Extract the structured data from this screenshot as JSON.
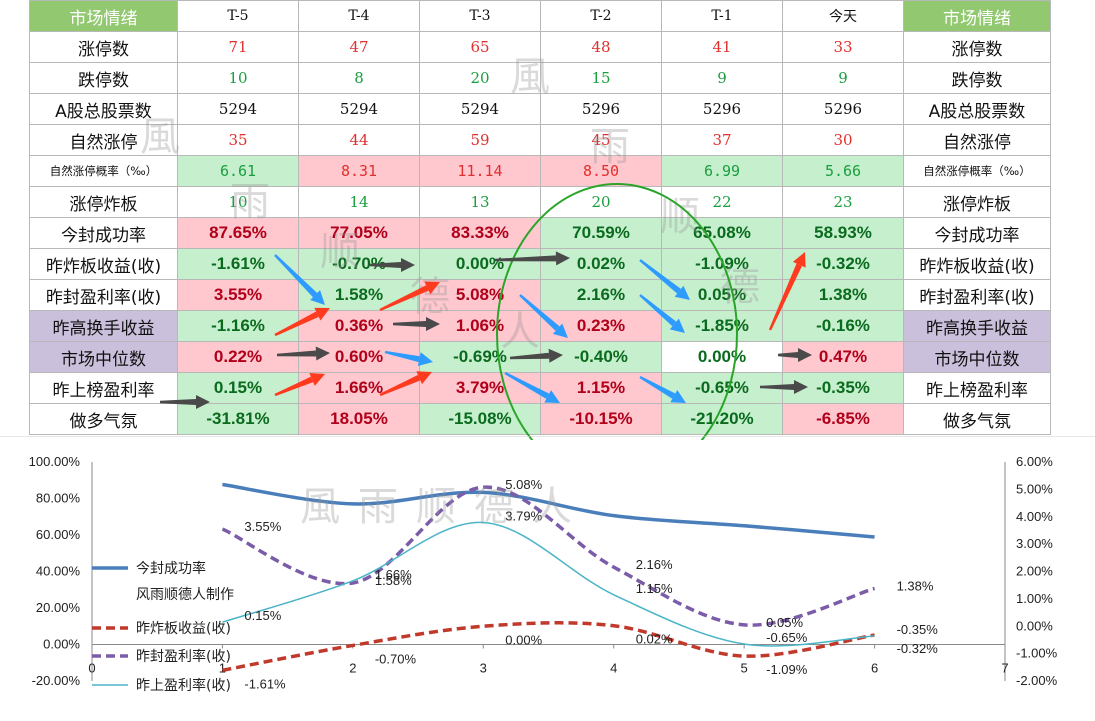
{
  "table": {
    "header": {
      "left": "市场情绪",
      "right": "市场情绪",
      "cols": [
        "T-5",
        "T-4",
        "T-3",
        "T-2",
        "T-1",
        "今天"
      ]
    },
    "rows": [
      {
        "label": "涨停数",
        "values": [
          "71",
          "47",
          "65",
          "48",
          "41",
          "33"
        ]
      },
      {
        "label": "跌停数",
        "values": [
          "10",
          "8",
          "20",
          "15",
          "9",
          "9"
        ]
      },
      {
        "label": "A股总股票数",
        "values": [
          "5294",
          "5294",
          "5294",
          "5296",
          "5296",
          "5296"
        ]
      },
      {
        "label": "自然涨停",
        "values": [
          "35",
          "44",
          "59",
          "45",
          "37",
          "30"
        ]
      },
      {
        "label": "自然涨停概率（‰）",
        "values": [
          "6.61",
          "8.31",
          "11.14",
          "8.50",
          "6.99",
          "5.66"
        ]
      },
      {
        "label": "涨停炸板",
        "values": [
          "10",
          "14",
          "13",
          "20",
          "22",
          "23"
        ]
      },
      {
        "label": "今封成功率",
        "values": [
          "87.65%",
          "77.05%",
          "83.33%",
          "70.59%",
          "65.08%",
          "58.93%"
        ]
      },
      {
        "label": "昨炸板收益(收)",
        "values": [
          "-1.61%",
          "-0.70%",
          "0.00%",
          "0.02%",
          "-1.09%",
          "-0.32%"
        ]
      },
      {
        "label": "昨封盈利率(收)",
        "values": [
          "3.55%",
          "1.58%",
          "5.08%",
          "2.16%",
          "0.05%",
          "1.38%"
        ]
      },
      {
        "label": "昨高换手收益",
        "values": [
          "-1.16%",
          "0.36%",
          "1.06%",
          "0.23%",
          "-1.85%",
          "-0.16%"
        ]
      },
      {
        "label": "市场中位数",
        "values": [
          "0.22%",
          "0.60%",
          "-0.69%",
          "-0.40%",
          "0.00%",
          "0.47%"
        ]
      },
      {
        "label": "昨上榜盈利率",
        "values": [
          "0.15%",
          "1.66%",
          "3.79%",
          "1.15%",
          "-0.65%",
          "-0.35%"
        ]
      },
      {
        "label": "做多气氛",
        "values": [
          "-31.81%",
          "18.05%",
          "-15.08%",
          "-10.15%",
          "-21.20%",
          "-6.85%"
        ]
      }
    ]
  },
  "watermark": "風雨顺德人",
  "colors": {
    "cell_green": "#c6efce",
    "cell_red": "#ffc7ce",
    "cell_purple": "#cbc0dc",
    "header_green": "#92c870",
    "arrow_red": "#ff3b1f",
    "arrow_blue": "#2e9bff",
    "arrow_black": "#4a4a4a",
    "circle_green": "#2aa52a"
  },
  "chart_data": {
    "type": "line",
    "x": [
      1,
      2,
      3,
      4,
      5,
      6
    ],
    "xlim": [
      0,
      7
    ],
    "y_left": {
      "ylim": [
        -20,
        100
      ],
      "ticks": [
        "-20.00%",
        "0.00%",
        "20.00%",
        "40.00%",
        "60.00%",
        "80.00%",
        "100.00%"
      ]
    },
    "y_right": {
      "ylim": [
        -2,
        6
      ],
      "ticks": [
        "-2.00%",
        "-1.00%",
        "0.00%",
        "1.00%",
        "2.00%",
        "3.00%",
        "4.00%",
        "5.00%",
        "6.00%"
      ]
    },
    "x_ticks": [
      "0",
      "1",
      "2",
      "3",
      "4",
      "5",
      "6",
      "7"
    ],
    "series": [
      {
        "name": "今封成功率",
        "axis": "left",
        "values": [
          87.65,
          77.05,
          83.33,
          70.59,
          65.08,
          58.93
        ],
        "color": "#4a7ebb",
        "style": "solid-thick",
        "labels": []
      },
      {
        "name": "昨炸板收益(收)",
        "axis": "right",
        "values": [
          -1.61,
          -0.7,
          0.0,
          0.02,
          -1.09,
          -0.32
        ],
        "color": "#c0392b",
        "style": "dashed",
        "labels": [
          "-1.61%",
          "-0.70%",
          "0.00%",
          "0.02%",
          "-1.09%",
          "-0.32%"
        ]
      },
      {
        "name": "昨封盈利率(收)",
        "axis": "right",
        "values": [
          3.55,
          1.58,
          5.08,
          2.16,
          0.05,
          1.38
        ],
        "color": "#7b5ca8",
        "style": "dashed",
        "labels": [
          "3.55%",
          "1.58%",
          "5.08%",
          "2.16%",
          "0.05%",
          "1.38%"
        ]
      },
      {
        "name": "昨上盈利率(收)",
        "axis": "right",
        "values": [
          0.15,
          1.66,
          3.79,
          1.15,
          -0.65,
          -0.35
        ],
        "color": "#4bb4c8",
        "style": "thin",
        "labels": [
          "0.15%",
          "1.66%",
          "3.79%",
          "1.15%",
          "-0.65%",
          "-0.35%"
        ]
      }
    ],
    "legend_extra": "风雨顺德人制作"
  }
}
